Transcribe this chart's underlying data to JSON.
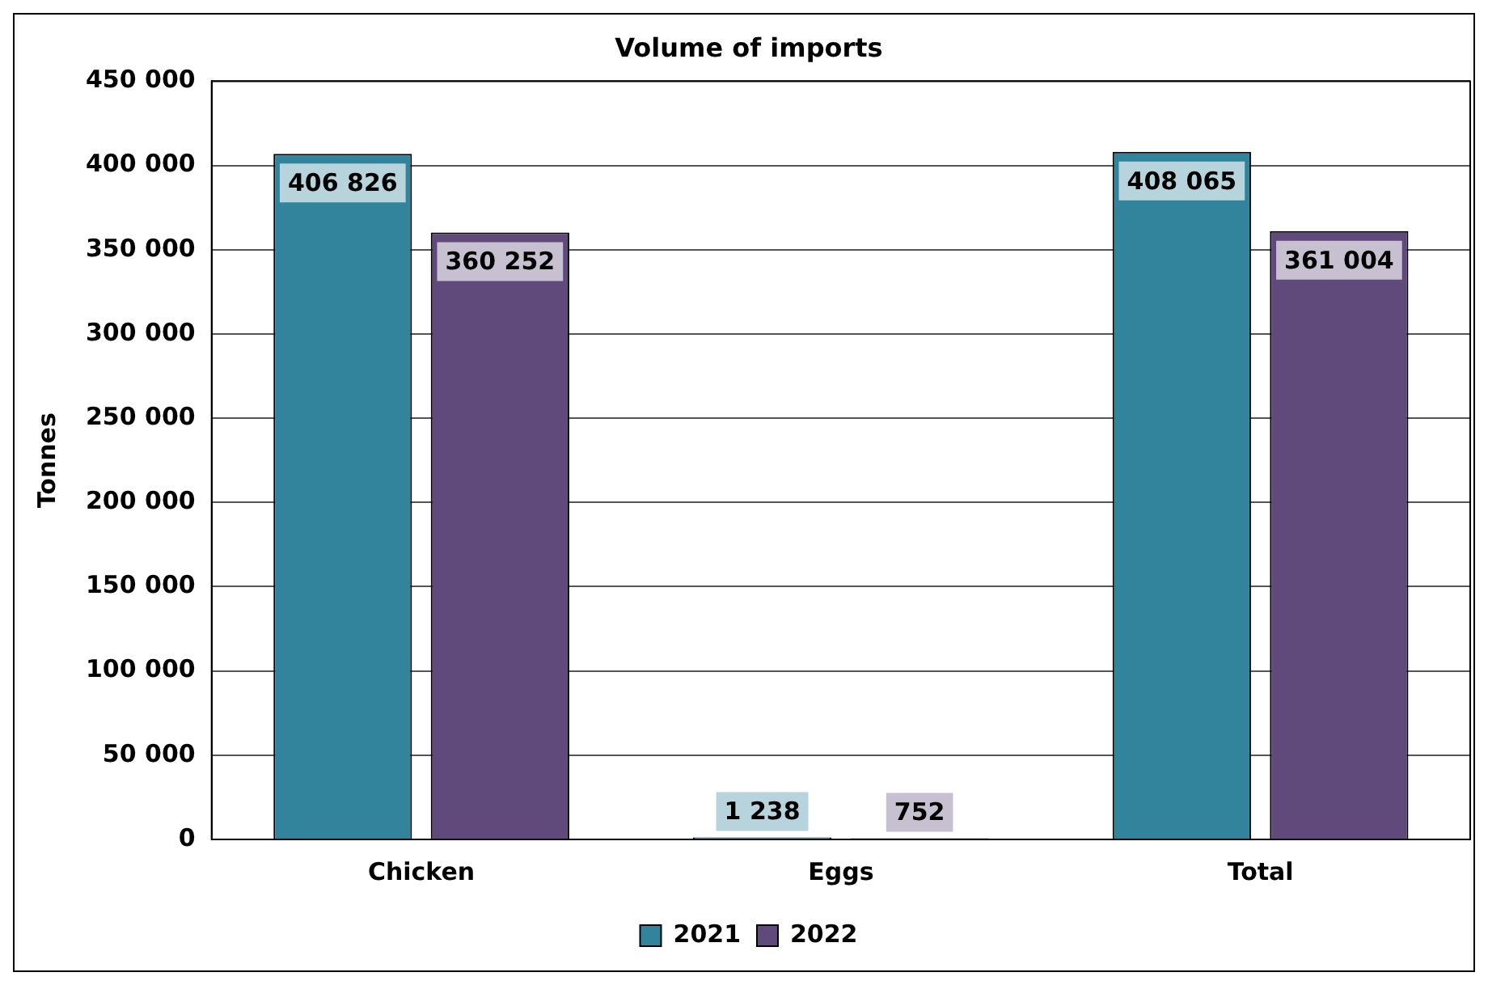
{
  "chart_data": {
    "type": "bar",
    "title": "Volume of imports",
    "ylabel": "Tonnes",
    "categories": [
      "Chicken",
      "Eggs",
      "Total"
    ],
    "series": [
      {
        "name": "2021",
        "color": "#31849b",
        "values": [
          406826,
          1238,
          408065
        ],
        "value_labels": [
          "406 826",
          "1 238",
          "408 065"
        ]
      },
      {
        "name": "2022",
        "color": "#604a7b",
        "values": [
          360252,
          752,
          361004
        ],
        "value_labels": [
          "360 252",
          "752",
          "361 004"
        ]
      }
    ],
    "ylim": [
      0,
      450000
    ],
    "yticks": [
      {
        "value": 0,
        "label": "0"
      },
      {
        "value": 50000,
        "label": "50 000"
      },
      {
        "value": 100000,
        "label": "100 000"
      },
      {
        "value": 150000,
        "label": "150 000"
      },
      {
        "value": 200000,
        "label": "200 000"
      },
      {
        "value": 250000,
        "label": "250 000"
      },
      {
        "value": 300000,
        "label": "300 000"
      },
      {
        "value": 350000,
        "label": "350 000"
      },
      {
        "value": 400000,
        "label": "400 000"
      },
      {
        "value": 450000,
        "label": "450 000"
      }
    ],
    "grid": "y",
    "legend": "bottom"
  }
}
